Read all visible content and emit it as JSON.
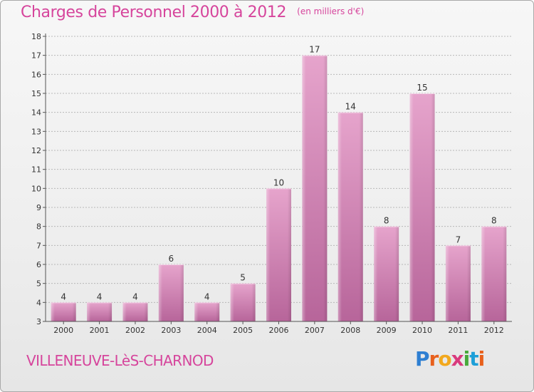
{
  "header": {
    "title": "Charges de Personnel 2000 à 2012",
    "unit": "(en milliers d'€)"
  },
  "footer": {
    "commune": "VILLENEUVE-LèS-CHARNOD",
    "logo_letters": [
      "P",
      "r",
      "o",
      "x",
      "i",
      "t",
      "i"
    ],
    "logo_colors": [
      "#2e7fd2",
      "#e8601c",
      "#f2a81d",
      "#d93a7d",
      "#48a93b",
      "#1d9fd8",
      "#e8601c"
    ]
  },
  "colors": {
    "title": "#d6459c",
    "bar_light": "#e6a4cc",
    "bar_dark": "#b7659a"
  },
  "chart_data": {
    "type": "bar",
    "categories": [
      "2000",
      "2001",
      "2002",
      "2003",
      "2004",
      "2005",
      "2006",
      "2007",
      "2008",
      "2009",
      "2010",
      "2011",
      "2012"
    ],
    "values": [
      4,
      4,
      4,
      6,
      4,
      5,
      10,
      17,
      14,
      8,
      15,
      7,
      8
    ],
    "value_labels": [
      "4",
      "4",
      "4",
      "6",
      "4",
      "5",
      "10",
      "17",
      "14",
      "8",
      "15",
      "7",
      "8"
    ],
    "yticks": [
      "3",
      "4",
      "5",
      "6",
      "7",
      "8",
      "9",
      "10",
      "11",
      "12",
      "13",
      "14",
      "15",
      "16",
      "17",
      "18"
    ],
    "ylim": [
      3,
      18
    ],
    "grid": true
  }
}
